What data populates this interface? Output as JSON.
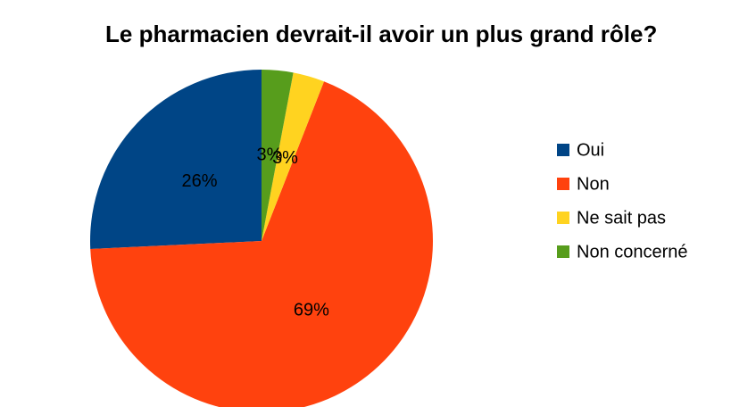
{
  "chart_data": {
    "type": "pie",
    "title": "Le pharmacien devrait-il avoir un plus grand rôle?",
    "categories": [
      "Oui",
      "Non",
      "Ne sait pas",
      "Non concerné"
    ],
    "values": [
      26,
      69,
      3,
      3
    ],
    "value_labels": [
      "26%",
      "69%",
      "3%",
      "3%"
    ],
    "colors": [
      "#004586",
      "#ff420e",
      "#ffd320",
      "#579d1c"
    ],
    "legend": "right"
  }
}
